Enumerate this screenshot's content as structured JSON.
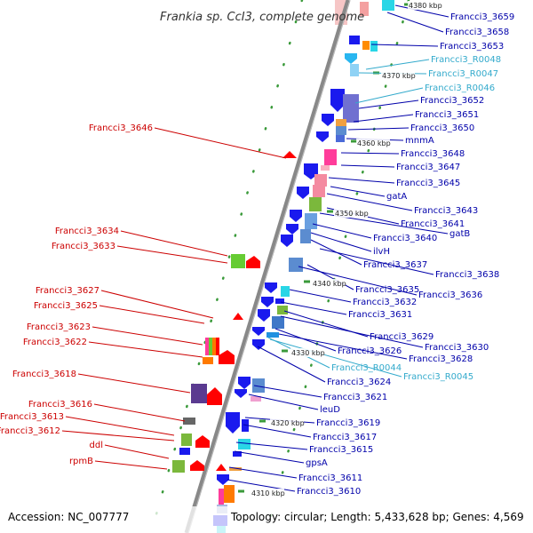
{
  "header": {
    "title": "Frankia sp. CcI3, complete genome"
  },
  "footer": {
    "accession": "Accession: NC_007777",
    "topology": "Topology: circular; Length: 5,433,628 bp; Genes: 4,569"
  },
  "colors": {
    "backbone": "#888888",
    "forward_label": "#cc0000",
    "reverse_label": "#0000aa",
    "rna_label": "#33aacc",
    "gene_blue": "#1a1aee",
    "gene_red": "#ff0000",
    "dots": "#33aa33"
  },
  "ticks": [
    {
      "text": "4380 kbp"
    },
    {
      "text": "4370 kbp"
    },
    {
      "text": "4360 kbp"
    },
    {
      "text": "4350 kbp"
    },
    {
      "text": "4340 kbp"
    },
    {
      "text": "4330 kbp"
    },
    {
      "text": "4320 kbp"
    },
    {
      "text": "4310 kbp"
    }
  ],
  "left_labels": [
    {
      "text": "Francci3_3646"
    },
    {
      "text": "Francci3_3634"
    },
    {
      "text": "Francci3_3633"
    },
    {
      "text": "Francci3_3627"
    },
    {
      "text": "Francci3_3625"
    },
    {
      "text": "Francci3_3623"
    },
    {
      "text": "Francci3_3622"
    },
    {
      "text": "Francci3_3618"
    },
    {
      "text": "Francci3_3616"
    },
    {
      "text": "Francci3_3613"
    },
    {
      "text": "Francci3_3612"
    },
    {
      "text": "ddl"
    },
    {
      "text": "rpmB"
    }
  ],
  "right_labels": [
    {
      "text": "Francci3_3659",
      "kind": "gene"
    },
    {
      "text": "Francci3_3658",
      "kind": "gene"
    },
    {
      "text": "Francci3_3653",
      "kind": "gene"
    },
    {
      "text": "Francci3_R0048",
      "kind": "rna"
    },
    {
      "text": "Francci3_R0047",
      "kind": "rna"
    },
    {
      "text": "Francci3_R0046",
      "kind": "rna"
    },
    {
      "text": "Francci3_3652",
      "kind": "gene"
    },
    {
      "text": "Francci3_3651",
      "kind": "gene"
    },
    {
      "text": "Francci3_3650",
      "kind": "gene"
    },
    {
      "text": "mnmA",
      "kind": "gene"
    },
    {
      "text": "Francci3_3648",
      "kind": "gene"
    },
    {
      "text": "Francci3_3647",
      "kind": "gene"
    },
    {
      "text": "Francci3_3645",
      "kind": "gene"
    },
    {
      "text": "gatA",
      "kind": "gene"
    },
    {
      "text": "Francci3_3643",
      "kind": "gene"
    },
    {
      "text": "Francci3_3641",
      "kind": "gene"
    },
    {
      "text": "gatB",
      "kind": "gene"
    },
    {
      "text": "Francci3_3640",
      "kind": "gene"
    },
    {
      "text": "ilvH",
      "kind": "gene"
    },
    {
      "text": "Francci3_3637",
      "kind": "gene"
    },
    {
      "text": "Francci3_3638",
      "kind": "gene"
    },
    {
      "text": "Francci3_3635",
      "kind": "gene"
    },
    {
      "text": "Francci3_3636",
      "kind": "gene"
    },
    {
      "text": "Francci3_3632",
      "kind": "gene"
    },
    {
      "text": "Francci3_3631",
      "kind": "gene"
    },
    {
      "text": "Francci3_3629",
      "kind": "gene"
    },
    {
      "text": "Francci3_3630",
      "kind": "gene"
    },
    {
      "text": "Francci3_3626",
      "kind": "gene"
    },
    {
      "text": "Francci3_3628",
      "kind": "gene"
    },
    {
      "text": "Francci3_R0044",
      "kind": "rna"
    },
    {
      "text": "Francci3_R0045",
      "kind": "rna"
    },
    {
      "text": "Francci3_3624",
      "kind": "gene"
    },
    {
      "text": "Francci3_3621",
      "kind": "gene"
    },
    {
      "text": "leuD",
      "kind": "gene"
    },
    {
      "text": "Francci3_3619",
      "kind": "gene"
    },
    {
      "text": "Francci3_3617",
      "kind": "gene"
    },
    {
      "text": "Francci3_3615",
      "kind": "gene"
    },
    {
      "text": "gpsA",
      "kind": "gene"
    },
    {
      "text": "Francci3_3611",
      "kind": "gene"
    },
    {
      "text": "Francci3_3610",
      "kind": "gene"
    }
  ]
}
